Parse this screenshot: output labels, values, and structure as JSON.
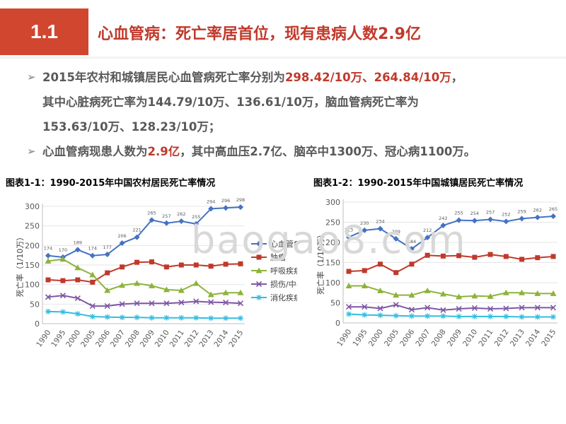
{
  "header": {
    "num": "1.1",
    "title": "心血管病：死亡率居首位，现有患病人数2.9亿"
  },
  "bullets": [
    {
      "pre": "2015年农村和城镇居民心血管病死亡率分别为",
      "red": "298.42/10万、264.84/10万",
      "post": "，"
    },
    {
      "line": "其中心脏病死亡率为144.79/10万、136.61/10万，脑血管病死亡率为"
    },
    {
      "line": "153.63/10万、128.23/10万；"
    },
    {
      "pre": "心血管病现患人数为",
      "red": "2.9亿",
      "post": "，其中高血压2.7亿、脑卒中1300万、冠心病1100万。"
    }
  ],
  "watermark": "baogao8.com",
  "chart_data": [
    {
      "type": "line",
      "title": "图表1-1：1990-2015年中国农村居民死亡率情况",
      "ylabel": "死亡率（1/10万）",
      "ylim": [
        0,
        300
      ],
      "yticks": [
        0,
        50,
        100,
        150,
        200,
        250,
        300
      ],
      "categories": [
        "1990",
        "1995",
        "2000",
        "2005",
        "2006",
        "2007",
        "2008",
        "2009",
        "2010",
        "2011",
        "2012",
        "2013",
        "2014",
        "2015"
      ],
      "legend_position": "right",
      "series": [
        {
          "name": "心血管病",
          "color": "#4472c4",
          "marker": "diamond",
          "labels": true,
          "values": [
            174,
            170,
            189,
            174,
            177,
            206,
            221,
            265,
            257,
            262,
            255,
            294,
            296,
            298
          ]
        },
        {
          "name": "肿瘤",
          "color": "#c0392b",
          "marker": "square",
          "values": [
            112,
            110,
            112,
            106,
            130,
            145,
            157,
            158,
            145,
            150,
            150,
            147,
            152,
            153
          ]
        },
        {
          "name": "呼吸疾病",
          "color": "#8db33a",
          "marker": "triangle",
          "values": [
            160,
            165,
            143,
            125,
            85,
            98,
            103,
            97,
            87,
            85,
            103,
            74,
            79,
            79
          ]
        },
        {
          "name": "损伤/中毒",
          "color": "#7e57a5",
          "marker": "x",
          "values": [
            68,
            72,
            65,
            45,
            45,
            50,
            52,
            52,
            52,
            54,
            57,
            55,
            54,
            52
          ]
        },
        {
          "name": "消化疾病",
          "color": "#33bde0",
          "marker": "star",
          "values": [
            31,
            30,
            25,
            18,
            17,
            16,
            16,
            15,
            15,
            15,
            15,
            14,
            14,
            14
          ]
        }
      ]
    },
    {
      "type": "line",
      "title": "图表1-2：1990-2015年中国城镇居民死亡率情况",
      "ylabel": "死亡率（1/10万）",
      "ylim": [
        0,
        300
      ],
      "yticks": [
        0,
        50,
        100,
        150,
        200,
        250,
        300
      ],
      "categories": [
        "1990",
        "1995",
        "2000",
        "2005",
        "2006",
        "2007",
        "2008",
        "2009",
        "2010",
        "2011",
        "2012",
        "2013",
        "2014",
        "2015"
      ],
      "legend_position": "none",
      "series": [
        {
          "name": "心血管病",
          "color": "#4472c4",
          "marker": "diamond",
          "labels": true,
          "values": [
            213,
            230,
            234,
            209,
            184,
            212,
            242,
            255,
            254,
            257,
            252,
            259,
            262,
            265
          ]
        },
        {
          "name": "肿瘤",
          "color": "#c0392b",
          "marker": "square",
          "values": [
            128,
            130,
            146,
            125,
            146,
            168,
            166,
            167,
            163,
            170,
            165,
            158,
            162,
            165
          ]
        },
        {
          "name": "呼吸疾病",
          "color": "#8db33a",
          "marker": "triangle",
          "values": [
            92,
            92,
            80,
            69,
            69,
            80,
            72,
            65,
            67,
            66,
            75,
            75,
            73,
            73
          ]
        },
        {
          "name": "损伤/中毒",
          "color": "#7e57a5",
          "marker": "x",
          "values": [
            40,
            40,
            36,
            45,
            33,
            38,
            32,
            35,
            37,
            35,
            36,
            38,
            38,
            38
          ]
        },
        {
          "name": "消化疾病",
          "color": "#33bde0",
          "marker": "star",
          "values": [
            22,
            20,
            19,
            18,
            17,
            17,
            17,
            16,
            16,
            16,
            16,
            15,
            15,
            15
          ]
        }
      ]
    }
  ]
}
